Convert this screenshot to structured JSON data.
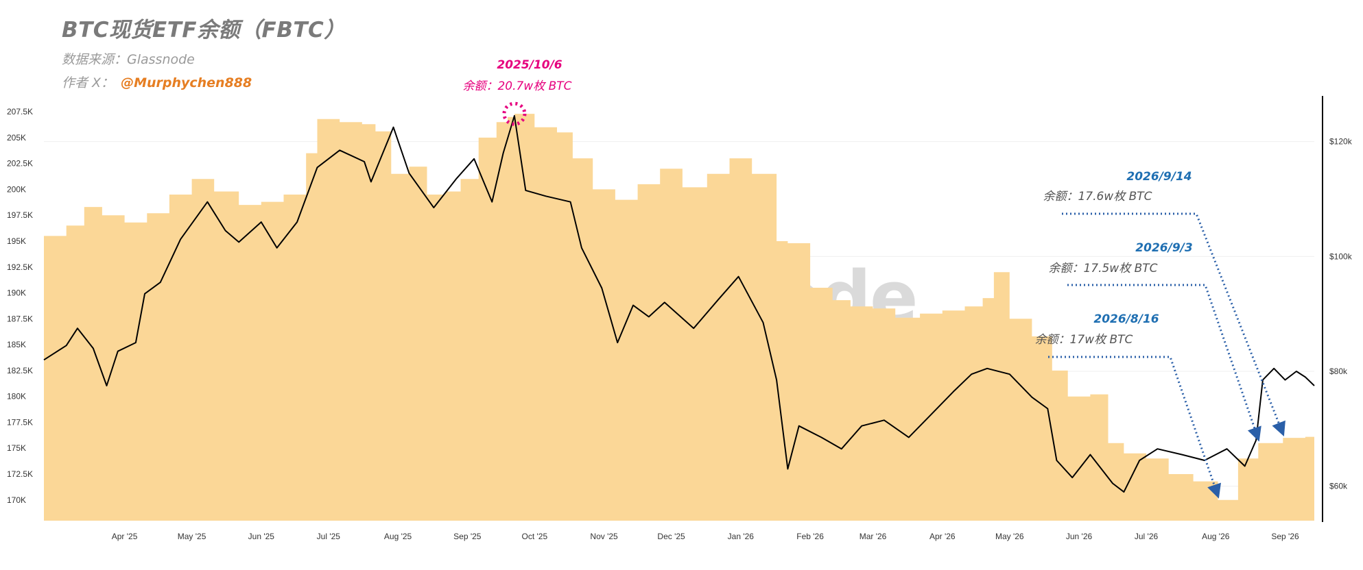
{
  "header": {
    "title": "BTC现货ETF余额（FBTC）",
    "source": "数据来源：Glassnode",
    "author_label": "作者 X：",
    "author_handle": "@Murphychen888"
  },
  "watermark": "glassnode",
  "colors": {
    "area": "#fbd797",
    "price": "#000000",
    "peak_annotation": "#e6007e",
    "date_annotation": "#1f6fb2",
    "grid": "#efefef"
  },
  "chart_data": {
    "type": "area",
    "x_axis": {
      "ticks": [
        "Apr '25",
        "May '25",
        "Jun '25",
        "Jul '25",
        "Aug '25",
        "Sep '25",
        "Oct '25",
        "Nov '25",
        "Dec '25",
        "Jan '26",
        "Feb '26",
        "Mar '26",
        "Apr '26",
        "May '26",
        "Jun '26",
        "Jul '26",
        "Aug '26",
        "Sep '26"
      ],
      "range": [
        "2025-03-10",
        "2026-09-28"
      ]
    },
    "y_left": {
      "ticks": [
        "170K",
        "172.5K",
        "175K",
        "177.5K",
        "180K",
        "182.5K",
        "185K",
        "187.5K",
        "190K",
        "192.5K",
        "195K",
        "197.5K",
        "200K",
        "202.5K",
        "205K",
        "207.5K"
      ],
      "range": [
        168000,
        208500
      ]
    },
    "y_right": {
      "ticks": [
        "$60k",
        "$80k",
        "$100k",
        "$120k"
      ],
      "range": [
        54000,
        127000
      ]
    },
    "series": [
      {
        "key": "balance",
        "type": "area",
        "axis": "left",
        "points": [
          [
            "2025-03-10",
            195500
          ],
          [
            "2025-03-20",
            196500
          ],
          [
            "2025-03-28",
            198300
          ],
          [
            "2025-04-05",
            197500
          ],
          [
            "2025-04-15",
            196800
          ],
          [
            "2025-04-25",
            197700
          ],
          [
            "2025-05-05",
            199500
          ],
          [
            "2025-05-15",
            201000
          ],
          [
            "2025-05-25",
            199800
          ],
          [
            "2025-06-05",
            198500
          ],
          [
            "2025-06-15",
            198800
          ],
          [
            "2025-06-25",
            199500
          ],
          [
            "2025-07-05",
            203500
          ],
          [
            "2025-07-10",
            206800
          ],
          [
            "2025-07-20",
            206500
          ],
          [
            "2025-07-30",
            206300
          ],
          [
            "2025-08-05",
            205600
          ],
          [
            "2025-08-12",
            201500
          ],
          [
            "2025-08-20",
            202200
          ],
          [
            "2025-08-28",
            199500
          ],
          [
            "2025-09-05",
            199800
          ],
          [
            "2025-09-12",
            201000
          ],
          [
            "2025-09-20",
            205000
          ],
          [
            "2025-09-28",
            206500
          ],
          [
            "2025-10-03",
            207000
          ],
          [
            "2025-10-06",
            207300
          ],
          [
            "2025-10-15",
            206000
          ],
          [
            "2025-10-25",
            205500
          ],
          [
            "2025-11-01",
            203000
          ],
          [
            "2025-11-10",
            200000
          ],
          [
            "2025-11-20",
            199000
          ],
          [
            "2025-11-30",
            200500
          ],
          [
            "2025-12-10",
            202000
          ],
          [
            "2025-12-20",
            200200
          ],
          [
            "2025-12-31",
            201500
          ],
          [
            "2026-01-10",
            203000
          ],
          [
            "2026-01-20",
            201500
          ],
          [
            "2026-01-31",
            195000
          ],
          [
            "2026-02-05",
            194800
          ],
          [
            "2026-02-15",
            190500
          ],
          [
            "2026-02-25",
            189300
          ],
          [
            "2026-03-05",
            188700
          ],
          [
            "2026-03-15",
            188500
          ],
          [
            "2026-03-25",
            187600
          ],
          [
            "2026-04-05",
            188000
          ],
          [
            "2026-04-15",
            188300
          ],
          [
            "2026-04-25",
            188700
          ],
          [
            "2026-05-03",
            189500
          ],
          [
            "2026-05-08",
            192000
          ],
          [
            "2026-05-15",
            187500
          ],
          [
            "2026-05-25",
            185800
          ],
          [
            "2026-06-03",
            182500
          ],
          [
            "2026-06-10",
            180000
          ],
          [
            "2026-06-20",
            180200
          ],
          [
            "2026-06-28",
            175500
          ],
          [
            "2026-07-05",
            174500
          ],
          [
            "2026-07-15",
            174000
          ],
          [
            "2026-07-25",
            172500
          ],
          [
            "2026-08-05",
            171800
          ],
          [
            "2026-08-16",
            170000
          ],
          [
            "2026-08-25",
            174000
          ],
          [
            "2026-09-03",
            175500
          ],
          [
            "2026-09-14",
            176000
          ],
          [
            "2026-09-24",
            176100
          ]
        ]
      },
      {
        "key": "price",
        "type": "line",
        "axis": "right",
        "points": [
          [
            "2025-03-10",
            82000
          ],
          [
            "2025-03-20",
            84500
          ],
          [
            "2025-03-25",
            87500
          ],
          [
            "2025-04-01",
            84000
          ],
          [
            "2025-04-07",
            77500
          ],
          [
            "2025-04-12",
            83500
          ],
          [
            "2025-04-20",
            85000
          ],
          [
            "2025-04-24",
            93500
          ],
          [
            "2025-05-01",
            95500
          ],
          [
            "2025-05-10",
            103000
          ],
          [
            "2025-05-22",
            109500
          ],
          [
            "2025-05-30",
            104500
          ],
          [
            "2025-06-05",
            102500
          ],
          [
            "2025-06-15",
            106000
          ],
          [
            "2025-06-22",
            101500
          ],
          [
            "2025-07-01",
            106000
          ],
          [
            "2025-07-10",
            115500
          ],
          [
            "2025-07-20",
            118500
          ],
          [
            "2025-07-31",
            116500
          ],
          [
            "2025-08-03",
            113000
          ],
          [
            "2025-08-13",
            122500
          ],
          [
            "2025-08-20",
            114500
          ],
          [
            "2025-08-31",
            108500
          ],
          [
            "2025-09-10",
            113500
          ],
          [
            "2025-09-18",
            117000
          ],
          [
            "2025-09-26",
            109500
          ],
          [
            "2025-10-01",
            118000
          ],
          [
            "2025-10-06",
            124500
          ],
          [
            "2025-10-11",
            111500
          ],
          [
            "2025-10-20",
            110500
          ],
          [
            "2025-10-31",
            109500
          ],
          [
            "2025-11-05",
            101500
          ],
          [
            "2025-11-14",
            94500
          ],
          [
            "2025-11-21",
            85000
          ],
          [
            "2025-11-28",
            91500
          ],
          [
            "2025-12-05",
            89500
          ],
          [
            "2025-12-12",
            92000
          ],
          [
            "2025-12-25",
            87500
          ],
          [
            "2026-01-05",
            92500
          ],
          [
            "2026-01-14",
            96500
          ],
          [
            "2026-01-25",
            88500
          ],
          [
            "2026-01-31",
            78500
          ],
          [
            "2026-02-05",
            63000
          ],
          [
            "2026-02-10",
            70500
          ],
          [
            "2026-02-20",
            68500
          ],
          [
            "2026-03-01",
            66500
          ],
          [
            "2026-03-10",
            70500
          ],
          [
            "2026-03-20",
            71500
          ],
          [
            "2026-03-31",
            68500
          ],
          [
            "2026-04-10",
            72500
          ],
          [
            "2026-04-20",
            76500
          ],
          [
            "2026-04-28",
            79500
          ],
          [
            "2026-05-05",
            80500
          ],
          [
            "2026-05-15",
            79500
          ],
          [
            "2026-05-25",
            75500
          ],
          [
            "2026-06-01",
            73500
          ],
          [
            "2026-06-05",
            64500
          ],
          [
            "2026-06-12",
            61500
          ],
          [
            "2026-06-20",
            65500
          ],
          [
            "2026-06-30",
            60500
          ],
          [
            "2026-07-05",
            59000
          ],
          [
            "2026-07-12",
            64500
          ],
          [
            "2026-07-20",
            66500
          ],
          [
            "2026-07-31",
            65500
          ],
          [
            "2026-08-10",
            64500
          ],
          [
            "2026-08-20",
            66500
          ],
          [
            "2026-08-28",
            63500
          ],
          [
            "2026-09-02",
            68000
          ],
          [
            "2026-09-05",
            78500
          ],
          [
            "2026-09-10",
            80500
          ],
          [
            "2026-09-15",
            78500
          ],
          [
            "2026-09-20",
            80000
          ],
          [
            "2026-09-24",
            79000
          ],
          [
            "2026-09-28",
            77500
          ]
        ]
      }
    ],
    "annotations": [
      {
        "date": "2025/10/6",
        "balance": "余额：20.7w枚 BTC",
        "at": "2025-10-06",
        "value": 207300,
        "style": "peak"
      },
      {
        "date": "2026/9/14",
        "balance": "余额：17.6w枚 BTC",
        "at": "2026-09-14",
        "value": 176000,
        "style": "date"
      },
      {
        "date": "2026/9/3",
        "balance": "余额：17.5w枚 BTC",
        "at": "2026-09-03",
        "value": 175500,
        "style": "date"
      },
      {
        "date": "2026/8/16",
        "balance": "余额：17w枚 BTC",
        "at": "2026-08-16",
        "value": 170000,
        "style": "date"
      }
    ]
  }
}
